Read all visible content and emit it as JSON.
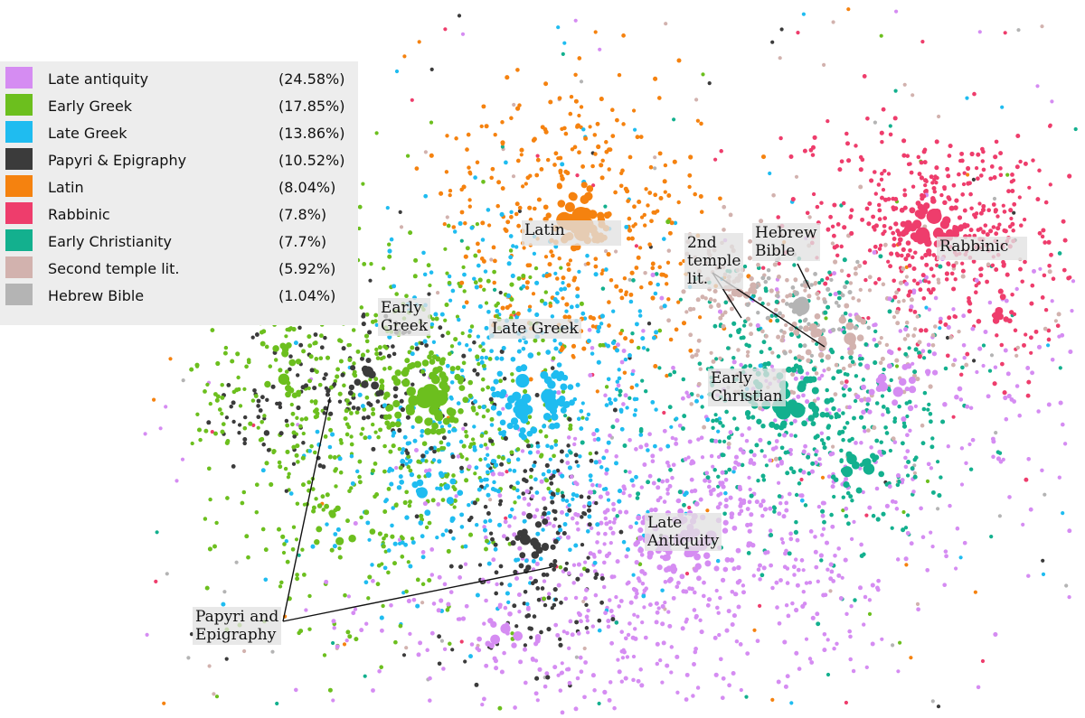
{
  "chart_data": {
    "type": "scatter",
    "title": "",
    "xlabel": "",
    "ylabel": "",
    "grid": false,
    "legend_position": "top-left",
    "series": [
      {
        "name": "Late antiquity",
        "percent_label": "(24.58%)",
        "color": "#d58cf2"
      },
      {
        "name": "Early Greek",
        "percent_label": "(17.85%)",
        "color": "#6cbf1e"
      },
      {
        "name": "Late Greek",
        "percent_label": "(13.86%)",
        "color": "#1fbcf0"
      },
      {
        "name": "Papyri & Epigraphy",
        "percent_label": "(10.52%)",
        "color": "#3b3b3b"
      },
      {
        "name": "Latin",
        "percent_label": "(8.04%)",
        "color": "#f5820f"
      },
      {
        "name": "Rabbinic",
        "percent_label": "(7.8%)",
        "color": "#ee3d6c"
      },
      {
        "name": "Early Christianity",
        "percent_label": "(7.7%)",
        "color": "#13b08e"
      },
      {
        "name": "Second temple lit.",
        "percent_label": "(5.92%)",
        "color": "#d2b2ae"
      },
      {
        "name": "Hebrew Bible",
        "percent_label": "(1.04%)",
        "color": "#b4b4b4"
      }
    ],
    "annotations": [
      {
        "text": "Latin"
      },
      {
        "text": "Early\nGreek"
      },
      {
        "text": "Late Greek"
      },
      {
        "text": "2nd\ntemple\nlit."
      },
      {
        "text": "Hebrew\nBible"
      },
      {
        "text": "Rabbinic"
      },
      {
        "text": "Early\nChristian"
      },
      {
        "text": "Late\nAntiquity"
      },
      {
        "text": "Papyri and\nEpigraphy"
      }
    ]
  }
}
